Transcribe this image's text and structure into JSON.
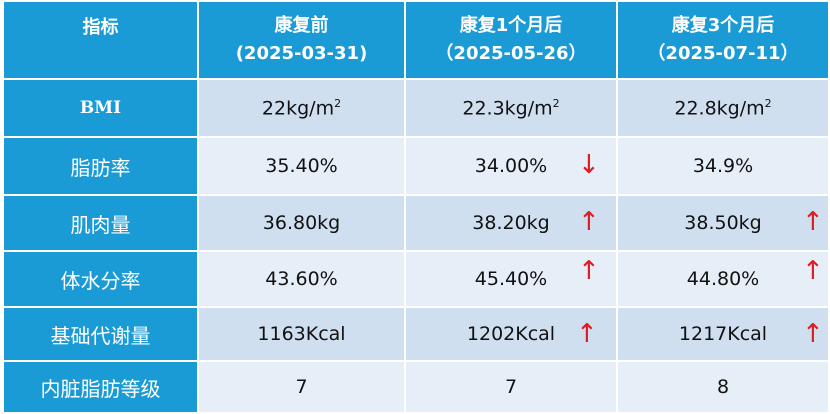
{
  "header": {
    "indicator": "指标",
    "col1_title": "康复前",
    "col1_date": "(2025-03-31)",
    "col2_title": "康复1个月后",
    "col2_date": "（2025-05-26）",
    "col3_title": "康复3个月后",
    "col3_date": "（2025-07-11）"
  },
  "rows": [
    {
      "label": "BMI",
      "v1": "22kg/m",
      "v1_sup": "2",
      "v2": "22.3kg/m",
      "v2_sup": "2",
      "v3": "22.8kg/m",
      "v3_sup": "2"
    },
    {
      "label": "脂肪率",
      "v1": "35.40%",
      "v2": "34.00%",
      "v2_arrow": "↓",
      "v3": "34.9%"
    },
    {
      "label": "肌肉量",
      "v1": "36.80kg",
      "v2": "38.20kg",
      "v2_arrow": "↑",
      "v3": "38.50kg",
      "v3_arrow": "↑"
    },
    {
      "label": "体水分率",
      "v1": "43.60%",
      "v2": "45.40%",
      "v2_arrow": "↑",
      "v3": "44.80%",
      "v3_arrow": "↑"
    },
    {
      "label": "基础代谢量",
      "v1": "1163Kcal",
      "v2": "1202Kcal",
      "v2_arrow": "↑",
      "v3": "1217Kcal",
      "v3_arrow": "↑"
    },
    {
      "label": "内脏脂肪等级",
      "v1": "7",
      "v2": "7",
      "v3": "8"
    }
  ],
  "colors": {
    "header_blue": "#1a9bd6",
    "cell_dark": "#cfdff0",
    "cell_light": "#e6eef8",
    "arrow_red": "#e01b24"
  }
}
